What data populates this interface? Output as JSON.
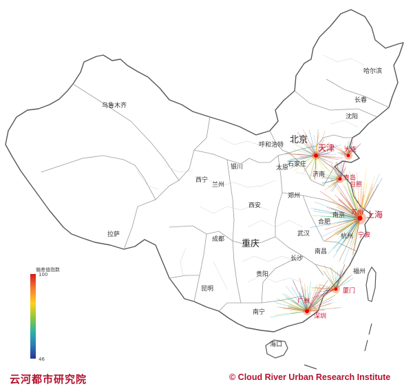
{
  "legend": {
    "title": "偏差值指数",
    "max": "100",
    "min": "46"
  },
  "footer": {
    "left": "云河都市研究院",
    "right": "© Cloud River Urban Research Institute"
  },
  "cities": [
    {
      "id": "urumqi",
      "name": "乌鲁木齐"
    },
    {
      "id": "harbin",
      "name": "哈尔滨"
    },
    {
      "id": "changchun",
      "name": "长春"
    },
    {
      "id": "shenyang",
      "name": "沈阳"
    },
    {
      "id": "beijing",
      "name": "北京"
    },
    {
      "id": "hohhot",
      "name": "呼和浩特"
    },
    {
      "id": "tianjin",
      "name": "天津"
    },
    {
      "id": "dalian",
      "name": "大连"
    },
    {
      "id": "shijiazhuang",
      "name": "石家庄"
    },
    {
      "id": "taiyuan",
      "name": "太原"
    },
    {
      "id": "yinchuan",
      "name": "银川"
    },
    {
      "id": "xining",
      "name": "西宁"
    },
    {
      "id": "lanzhou",
      "name": "兰州"
    },
    {
      "id": "jinan",
      "name": "济南"
    },
    {
      "id": "qingdao",
      "name": "青岛"
    },
    {
      "id": "rizhao",
      "name": "日照"
    },
    {
      "id": "zhengzhou",
      "name": "郑州"
    },
    {
      "id": "xian",
      "name": "西安"
    },
    {
      "id": "suzhou",
      "name": "苏州"
    },
    {
      "id": "shanghai",
      "name": "上海"
    },
    {
      "id": "nanjing",
      "name": "南京"
    },
    {
      "id": "hefei",
      "name": "合肥"
    },
    {
      "id": "ningbo",
      "name": "宁波"
    },
    {
      "id": "hangzhou",
      "name": "杭州"
    },
    {
      "id": "lhasa",
      "name": "拉萨"
    },
    {
      "id": "chengdu",
      "name": "成都"
    },
    {
      "id": "chongqing",
      "name": "重庆"
    },
    {
      "id": "wuhan",
      "name": "武汉"
    },
    {
      "id": "changsha",
      "name": "长沙"
    },
    {
      "id": "nanchang",
      "name": "南昌"
    },
    {
      "id": "fuzhou",
      "name": "福州"
    },
    {
      "id": "xiamen",
      "name": "厦门"
    },
    {
      "id": "guiyang",
      "name": "贵阳"
    },
    {
      "id": "kunming",
      "name": "昆明"
    },
    {
      "id": "guangzhou",
      "name": "广州"
    },
    {
      "id": "shenzhen",
      "name": "深圳"
    },
    {
      "id": "nanning",
      "name": "南宁"
    },
    {
      "id": "haikou",
      "name": "海口"
    }
  ]
}
